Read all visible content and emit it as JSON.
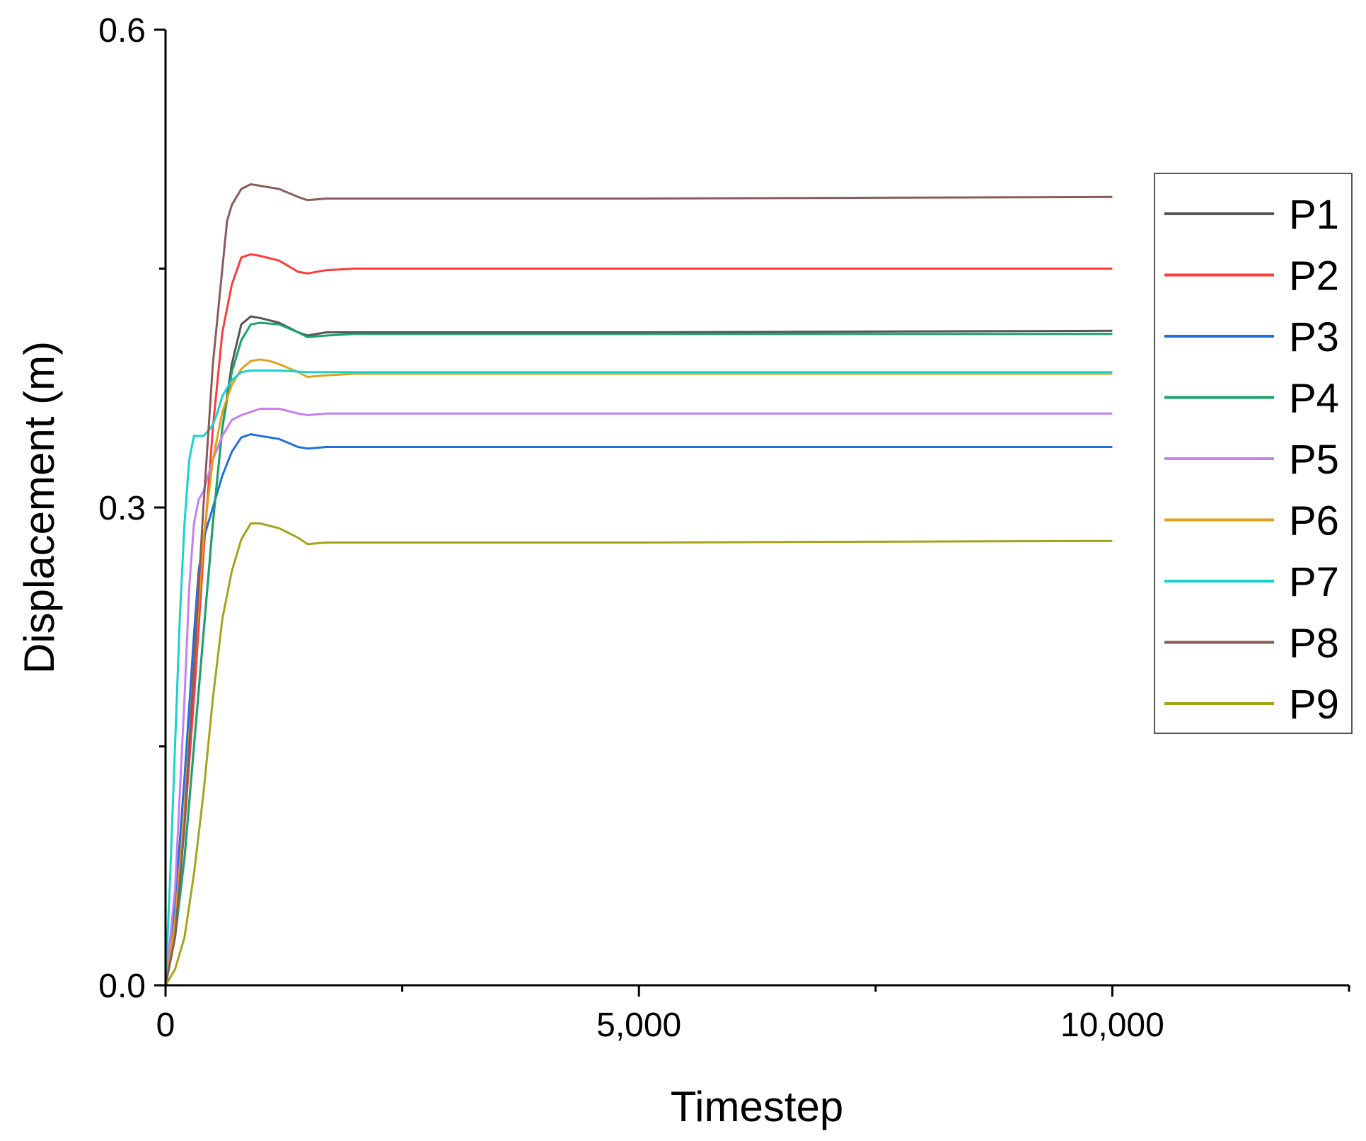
{
  "chart_data": {
    "type": "line",
    "xlabel": "Timestep",
    "ylabel": "Displacement (m)",
    "xlim": [
      0,
      12500
    ],
    "ylim": [
      0,
      0.6
    ],
    "x_ticks": [
      {
        "value": 0,
        "label": "0"
      },
      {
        "value": 5000,
        "label": "5,000"
      },
      {
        "value": 10000,
        "label": "10,000"
      }
    ],
    "x_minor_ticks": [
      2500,
      7500,
      12500
    ],
    "y_ticks": [
      {
        "value": 0,
        "label": "0.0"
      },
      {
        "value": 0.3,
        "label": "0.3"
      },
      {
        "value": 0.6,
        "label": "0.6"
      }
    ],
    "y_minor_ticks": [
      0.15,
      0.45
    ],
    "grid": false,
    "legend_position": "right",
    "series": [
      {
        "name": "P1",
        "color": "#555555",
        "x": [
          0,
          100,
          200,
          300,
          400,
          500,
          600,
          700,
          800,
          900,
          1000,
          1200,
          1400,
          1500,
          1700,
          2000,
          5000,
          10000
        ],
        "y": [
          0,
          0.03,
          0.08,
          0.15,
          0.22,
          0.29,
          0.35,
          0.39,
          0.415,
          0.42,
          0.419,
          0.416,
          0.41,
          0.408,
          0.41,
          0.41,
          0.41,
          0.411
        ]
      },
      {
        "name": "P2",
        "color": "#ff3b3b",
        "x": [
          0,
          100,
          200,
          300,
          400,
          500,
          600,
          700,
          800,
          900,
          1000,
          1200,
          1400,
          1500,
          1700,
          2000,
          5000,
          10000
        ],
        "y": [
          0,
          0.035,
          0.1,
          0.18,
          0.27,
          0.35,
          0.41,
          0.44,
          0.457,
          0.459,
          0.458,
          0.455,
          0.448,
          0.447,
          0.449,
          0.45,
          0.45,
          0.45
        ]
      },
      {
        "name": "P3",
        "color": "#1f6fe0",
        "x": [
          0,
          100,
          200,
          300,
          350,
          400,
          450,
          500,
          600,
          700,
          800,
          900,
          1000,
          1200,
          1400,
          1500,
          1700,
          2000,
          5000,
          10000
        ],
        "y": [
          0,
          0.05,
          0.13,
          0.22,
          0.26,
          0.28,
          0.29,
          0.3,
          0.32,
          0.335,
          0.344,
          0.346,
          0.345,
          0.343,
          0.338,
          0.337,
          0.338,
          0.338,
          0.338,
          0.338
        ]
      },
      {
        "name": "P4",
        "color": "#1aa36b",
        "x": [
          0,
          100,
          200,
          300,
          400,
          500,
          600,
          700,
          800,
          900,
          1000,
          1200,
          1400,
          1500,
          1700,
          2000,
          5000,
          10000
        ],
        "y": [
          0,
          0.03,
          0.08,
          0.15,
          0.22,
          0.29,
          0.35,
          0.385,
          0.405,
          0.415,
          0.416,
          0.415,
          0.41,
          0.407,
          0.408,
          0.409,
          0.409,
          0.409
        ]
      },
      {
        "name": "P5",
        "color": "#c77ef0",
        "x": [
          0,
          100,
          200,
          250,
          300,
          350,
          400,
          500,
          600,
          700,
          800,
          900,
          1000,
          1200,
          1400,
          1500,
          1700,
          2000,
          5000,
          10000
        ],
        "y": [
          0,
          0.06,
          0.18,
          0.25,
          0.29,
          0.305,
          0.31,
          0.33,
          0.345,
          0.355,
          0.358,
          0.36,
          0.362,
          0.362,
          0.359,
          0.358,
          0.359,
          0.359,
          0.359,
          0.359
        ]
      },
      {
        "name": "P6",
        "color": "#e0a21a",
        "x": [
          0,
          100,
          200,
          300,
          400,
          500,
          600,
          700,
          800,
          900,
          1000,
          1100,
          1200,
          1400,
          1500,
          1700,
          2000,
          5000,
          10000
        ],
        "y": [
          0,
          0.04,
          0.11,
          0.2,
          0.28,
          0.33,
          0.36,
          0.377,
          0.387,
          0.392,
          0.393,
          0.392,
          0.39,
          0.385,
          0.382,
          0.383,
          0.384,
          0.384,
          0.384
        ]
      },
      {
        "name": "P7",
        "color": "#19d1cf",
        "x": [
          0,
          50,
          100,
          150,
          200,
          250,
          300,
          350,
          400,
          450,
          500,
          550,
          600,
          700,
          800,
          900,
          1000,
          1200,
          1500,
          2000,
          5000,
          10000
        ],
        "y": [
          0,
          0.07,
          0.15,
          0.23,
          0.29,
          0.33,
          0.345,
          0.345,
          0.345,
          0.348,
          0.352,
          0.36,
          0.37,
          0.38,
          0.385,
          0.386,
          0.386,
          0.386,
          0.385,
          0.385,
          0.385,
          0.385
        ]
      },
      {
        "name": "P8",
        "color": "#8b5a5a",
        "x": [
          0,
          100,
          200,
          300,
          400,
          500,
          600,
          650,
          700,
          800,
          900,
          1000,
          1200,
          1400,
          1500,
          1700,
          2000,
          5000,
          10000
        ],
        "y": [
          0,
          0.03,
          0.1,
          0.2,
          0.3,
          0.39,
          0.45,
          0.48,
          0.49,
          0.5,
          0.503,
          0.502,
          0.5,
          0.495,
          0.493,
          0.494,
          0.494,
          0.494,
          0.495
        ]
      },
      {
        "name": "P9",
        "color": "#a3a31a",
        "x": [
          0,
          100,
          200,
          300,
          400,
          500,
          600,
          700,
          800,
          900,
          1000,
          1200,
          1400,
          1500,
          1700,
          2000,
          5000,
          10000
        ],
        "y": [
          0,
          0.01,
          0.03,
          0.07,
          0.12,
          0.18,
          0.23,
          0.26,
          0.28,
          0.29,
          0.29,
          0.287,
          0.281,
          0.277,
          0.278,
          0.278,
          0.278,
          0.279
        ]
      }
    ]
  }
}
